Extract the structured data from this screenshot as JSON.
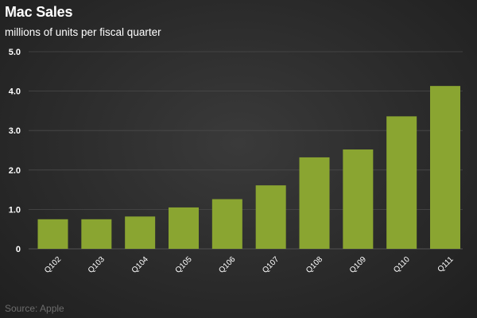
{
  "header": {
    "title": "Mac Sales",
    "subtitle": "millions of units per fiscal quarter"
  },
  "footer": {
    "source": "Source: Apple"
  },
  "chart_data": {
    "type": "bar",
    "title": "Mac Sales",
    "subtitle": "millions of units per fiscal quarter",
    "categories": [
      "Q102",
      "Q103",
      "Q104",
      "Q105",
      "Q106",
      "Q107",
      "Q108",
      "Q109",
      "Q110",
      "Q111"
    ],
    "values": [
      0.75,
      0.75,
      0.82,
      1.05,
      1.26,
      1.61,
      2.32,
      2.52,
      3.36,
      4.13
    ],
    "ylim": [
      0,
      5
    ],
    "yticks": [
      "0",
      "1.0",
      "2.0",
      "3.0",
      "4.0",
      "5.0"
    ],
    "xlabel": "",
    "ylabel": "",
    "grid": true,
    "legend": "none",
    "colors": {
      "bar": "#8aa531",
      "grid": "#4a4a4a",
      "text": "#ffffff",
      "source": "#6c6c6c"
    }
  }
}
